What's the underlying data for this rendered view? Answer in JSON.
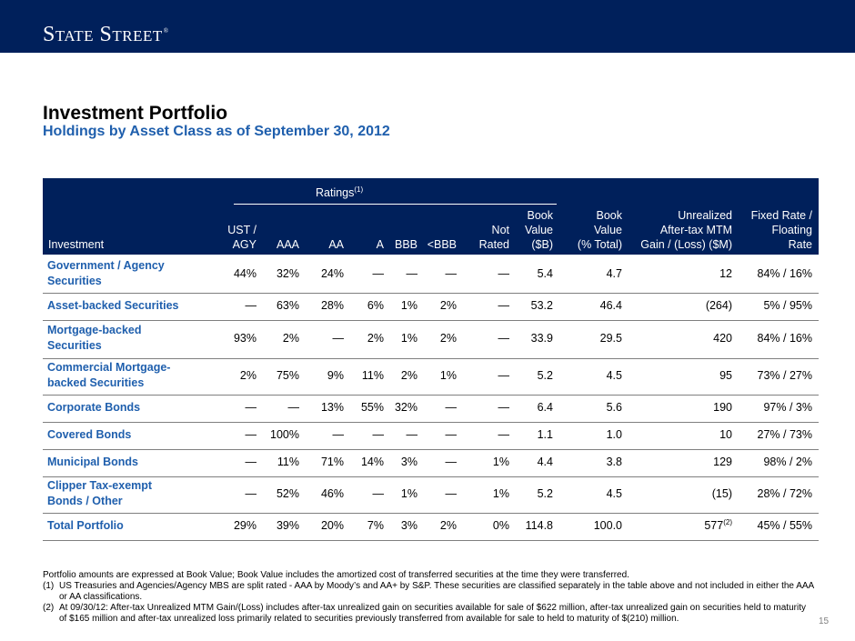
{
  "header": {
    "logo": "State Street",
    "logo_mark": "®"
  },
  "title": "Investment Portfolio",
  "subtitle": "Holdings by Asset Class as of September 30, 2012",
  "table": {
    "group_header": "Ratings",
    "group_header_note": "(1)",
    "columns": {
      "investment": "Investment",
      "ust_l1": "UST /",
      "ust_l2": "AGY",
      "aaa": "AAA",
      "aa": "AA",
      "a": "A",
      "bbb": "BBB",
      "lbbb": "<BBB",
      "notrated_l1": "Not",
      "notrated_l2": "Rated",
      "bvb_l1": "Book",
      "bvb_l2": "Value",
      "bvb_l3": "($B)",
      "bvp_l1": "Book",
      "bvp_l2": "Value",
      "bvp_l3": "(% Total)",
      "mtm_l1": "Unrealized",
      "mtm_l2": "After-tax  MTM",
      "mtm_l3": "Gain / (Loss) ($M)",
      "fixed_l1": "Fixed Rate /",
      "fixed_l2": "Floating",
      "fixed_l3": "Rate"
    },
    "rows": [
      {
        "name_l1": "Government / Agency",
        "name_l2": "Securities",
        "ust": "44%",
        "aaa": "32%",
        "aa": "24%",
        "a": "—",
        "bbb": "—",
        "lbbb": "—",
        "nr": "—",
        "bvb": "5.4",
        "bvp": "4.7",
        "mtm": "12",
        "mtm_note": "",
        "fixed": "84% / 16%"
      },
      {
        "name_l1": "Asset-backed Securities",
        "name_l2": "",
        "ust": "—",
        "aaa": "63%",
        "aa": "28%",
        "a": "6%",
        "bbb": "1%",
        "lbbb": "2%",
        "nr": "—",
        "bvb": "53.2",
        "bvp": "46.4",
        "mtm": "(264)",
        "mtm_note": "",
        "fixed": "5% / 95%"
      },
      {
        "name_l1": "Mortgage-backed",
        "name_l2": "Securities",
        "ust": "93%",
        "aaa": "2%",
        "aa": "—",
        "a": "2%",
        "bbb": "1%",
        "lbbb": "2%",
        "nr": "—",
        "bvb": "33.9",
        "bvp": "29.5",
        "mtm": "420",
        "mtm_note": "",
        "fixed": "84% / 16%"
      },
      {
        "name_l1": "Commercial Mortgage-",
        "name_l2": "backed Securities",
        "ust": "2%",
        "aaa": "75%",
        "aa": "9%",
        "a": "11%",
        "bbb": "2%",
        "lbbb": "1%",
        "nr": "—",
        "bvb": "5.2",
        "bvp": "4.5",
        "mtm": "95",
        "mtm_note": "",
        "fixed": "73% / 27%"
      },
      {
        "name_l1": "Corporate Bonds",
        "name_l2": "",
        "ust": "—",
        "aaa": "—",
        "aa": "13%",
        "a": "55%",
        "bbb": "32%",
        "lbbb": "—",
        "nr": "—",
        "bvb": "6.4",
        "bvp": "5.6",
        "mtm": "190",
        "mtm_note": "",
        "fixed": "97% / 3%"
      },
      {
        "name_l1": "Covered Bonds",
        "name_l2": "",
        "ust": "—",
        "aaa": "100%",
        "aa": "—",
        "a": "—",
        "bbb": "—",
        "lbbb": "—",
        "nr": "—",
        "bvb": "1.1",
        "bvp": "1.0",
        "mtm": "10",
        "mtm_note": "",
        "fixed": "27% / 73%"
      },
      {
        "name_l1": "Municipal Bonds",
        "name_l2": "",
        "ust": "—",
        "aaa": "11%",
        "aa": "71%",
        "a": "14%",
        "bbb": "3%",
        "lbbb": "—",
        "nr": "1%",
        "bvb": "4.4",
        "bvp": "3.8",
        "mtm": "129",
        "mtm_note": "",
        "fixed": "98% / 2%"
      },
      {
        "name_l1": "Clipper Tax-exempt",
        "name_l2": "Bonds / Other",
        "ust": "—",
        "aaa": "52%",
        "aa": "46%",
        "a": "—",
        "bbb": "1%",
        "lbbb": "—",
        "nr": "1%",
        "bvb": "5.2",
        "bvp": "4.5",
        "mtm": "(15)",
        "mtm_note": "",
        "fixed": "28% / 72%"
      },
      {
        "name_l1": "Total Portfolio",
        "name_l2": "",
        "ust": "29%",
        "aaa": "39%",
        "aa": "20%",
        "a": "7%",
        "bbb": "3%",
        "lbbb": "2%",
        "nr": "0%",
        "bvb": "114.8",
        "bvp": "100.0",
        "mtm": "577",
        "mtm_note": "(2)",
        "fixed": "45% / 55%"
      }
    ]
  },
  "notes": {
    "intro": "Portfolio amounts are expressed at Book Value; Book Value includes the amortized cost of transferred securities at the time they were transferred.",
    "n1_num": "(1)",
    "n1_text": "US Treasuries and Agencies/Agency MBS are split rated - AAA by Moody’s and AA+ by S&P. These securities are classified separately in the table above and not included in either the AAA or AA classifications.",
    "n2_num": "(2)",
    "n2_text": "At 09/30/12: After-tax Unrealized MTM Gain/(Loss) includes after-tax unrealized gain on securities available for sale of $622 million, after-tax unrealized gain on securities held to maturity of $165 million and after-tax unrealized loss primarily related to securities previously transferred from available for sale to held to maturity of $(210) million."
  },
  "page_number": "15",
  "colors": {
    "navy": "#00205b",
    "accent_blue": "#1f5fad"
  }
}
